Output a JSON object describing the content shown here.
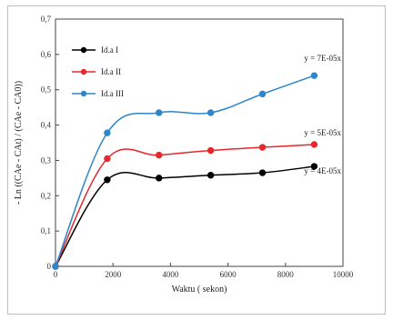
{
  "chart_data": {
    "type": "line",
    "title": "",
    "xlabel": "Waktu ( sekon)",
    "ylabel": "- Ln ((CAe - CAt) / (CAe - CA0))",
    "xlim": [
      0,
      10000
    ],
    "ylim": [
      0,
      0.7
    ],
    "x_ticks": [
      0,
      2000,
      4000,
      6000,
      8000,
      10000
    ],
    "x_tick_labels": [
      "0",
      "2000",
      "4000",
      "6000",
      "8000",
      "10000"
    ],
    "y_ticks": [
      0,
      0.1,
      0.2,
      0.3,
      0.4,
      0.5,
      0.6,
      0.7
    ],
    "y_tick_labels": [
      "0",
      "0,1",
      "0,2",
      "0,3",
      "0,4",
      "0,5",
      "0,6",
      "0,7"
    ],
    "grid": false,
    "legend_position": "top-left",
    "series": [
      {
        "name": "Id.a I",
        "color": "#000000",
        "x": [
          0,
          1800,
          3600,
          5400,
          7200,
          9000
        ],
        "y": [
          0,
          0.245,
          0.25,
          0.258,
          0.265,
          0.283
        ],
        "annotation": "y = 4E-05x"
      },
      {
        "name": "Id.a II",
        "color": "#e8262d",
        "x": [
          0,
          1800,
          3600,
          5400,
          7200,
          9000
        ],
        "y": [
          0,
          0.305,
          0.315,
          0.328,
          0.337,
          0.345
        ],
        "annotation": "y = 5E-05x"
      },
      {
        "name": "Id.a III",
        "color": "#2e86c8",
        "x": [
          0,
          1800,
          3600,
          5400,
          7200,
          9000
        ],
        "y": [
          0,
          0.378,
          0.435,
          0.435,
          0.488,
          0.54
        ],
        "annotation": "y = 7E-05x"
      }
    ]
  }
}
